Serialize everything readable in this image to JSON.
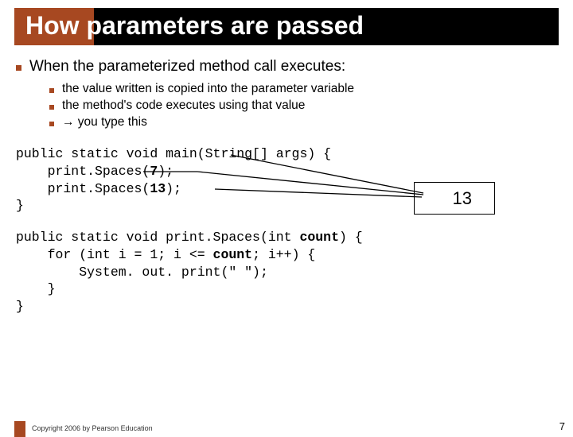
{
  "title": "How parameters are passed",
  "level1": "When the parameterized method call executes:",
  "level2": [
    "the value written is copied into the parameter variable",
    "the method's code executes using that value",
    "→ you type this"
  ],
  "code": {
    "block1": [
      "public static void main(String[] args) {",
      "    print.Spaces(7);",
      "    print.Spaces(13);",
      "}"
    ],
    "block2": [
      "public static void print.Spaces(int count) {",
      "    for (int i = 1; i <= count; i++) {",
      "        System. out. print(\" \");",
      "    }",
      "}"
    ],
    "bold_tokens": [
      "7",
      "13",
      "count"
    ],
    "value_box": "13"
  },
  "arrows": {
    "stroke": "#000000",
    "stroke_width": 1.3
  },
  "colors": {
    "accent": "#a74821",
    "title_bg": "#000000",
    "title_fg": "#ffffff",
    "text": "#000000",
    "page_bg": "#ffffff"
  },
  "footer": "Copyright 2006 by Pearson Education",
  "page_number": "7"
}
